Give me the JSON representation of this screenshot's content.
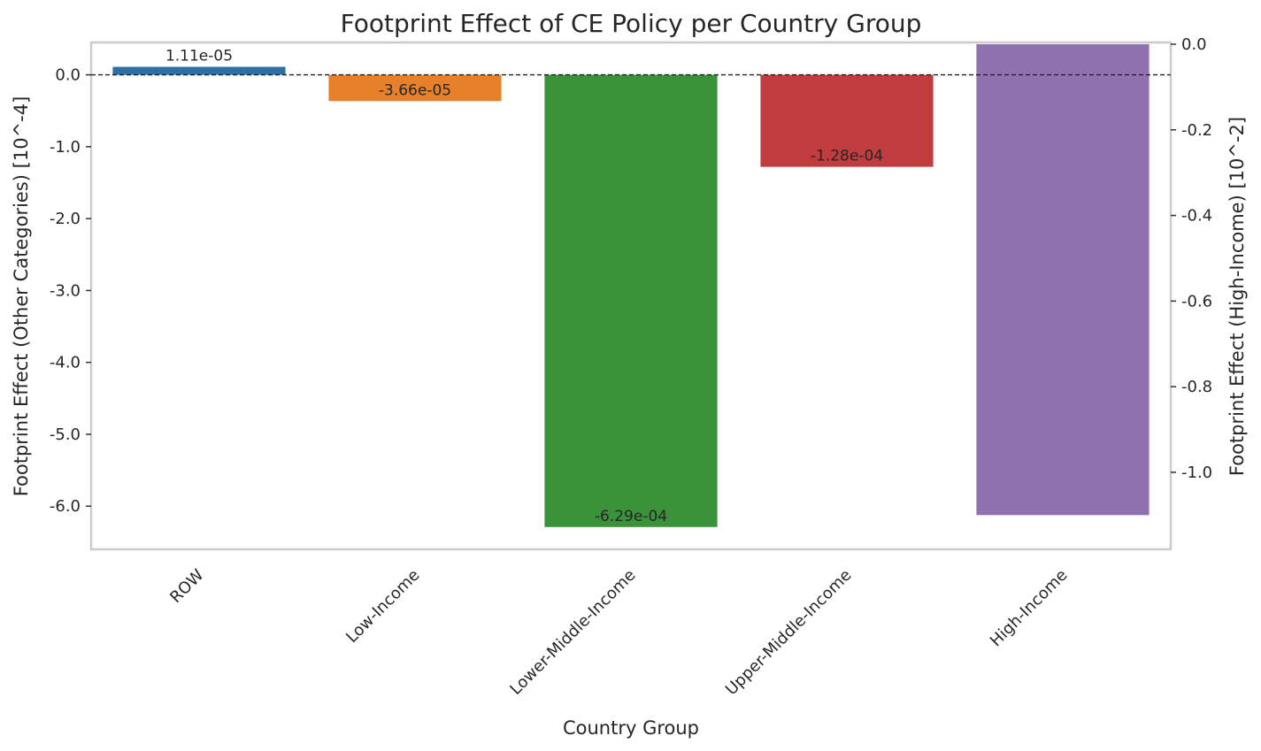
{
  "chart_data": {
    "type": "bar",
    "title": "Footprint Effect of CE Policy per Country Group",
    "xlabel": "Country Group",
    "ylabel_left": "Footprint Effect (Other Categories) [10^-4]",
    "ylabel_right": "Footprint Effect (High-Income) [10^-2]",
    "categories": [
      "ROW",
      "Low-Income",
      "Lower-Middle-Income",
      "Upper-Middle-Income",
      "High-Income"
    ],
    "values_left_axis": [
      0.111,
      -0.366,
      -6.29,
      -1.28,
      null
    ],
    "values_right_axis": [
      null,
      null,
      null,
      null,
      -1.1
    ],
    "data_labels": [
      "1.11e-05",
      "-3.66e-05",
      "-6.29e-04",
      "-1.28e-04",
      ""
    ],
    "colors": [
      "#2f6fa3",
      "#e6802b",
      "#3a9338",
      "#c13c3e",
      "#9072b0"
    ],
    "ylim_left": [
      -6.6,
      0.45
    ],
    "ylim_right": [
      -1.12,
      0.0
    ],
    "yticks_left": [
      0.0,
      -1.0,
      -2.0,
      -3.0,
      -4.0,
      -5.0,
      -6.0
    ],
    "yticks_left_labels": [
      "0.0",
      "-1.0",
      "-2.0",
      "-3.0",
      "-4.0",
      "-5.0",
      "-6.0"
    ],
    "yticks_right": [
      0.0,
      -0.2,
      -0.4,
      -0.6,
      -0.8,
      -1.0
    ],
    "yticks_right_labels": [
      "0.0",
      "-0.2",
      "-0.4",
      "-0.6",
      "-0.8",
      "-1.0"
    ],
    "reference_line": 0.0,
    "grid": false,
    "legend": "none"
  }
}
